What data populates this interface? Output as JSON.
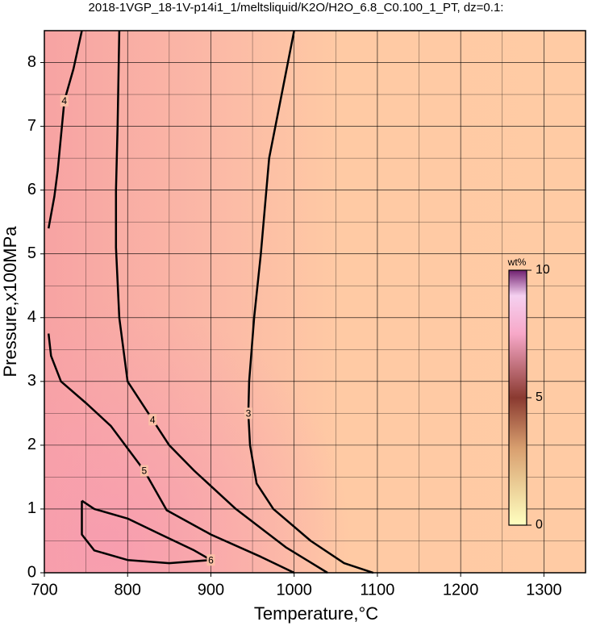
{
  "chart_data": {
    "type": "contour",
    "title": "2018-1VGP_18-1V-p14i1_1/meltsliquid/K2O/H2O_6.8_C0.100_1_PT, dz=0.1:",
    "x_label": "Temperature,°C",
    "y_label": "Pressure,x100MPa",
    "xlim": [
      700,
      1350
    ],
    "ylim": [
      0,
      8.5
    ],
    "xticks": [
      700,
      800,
      900,
      1000,
      1100,
      1200,
      1300
    ],
    "yticks": [
      0,
      1,
      2,
      3,
      4,
      5,
      6,
      7,
      8
    ],
    "grid": true,
    "contours": [
      {
        "level": 3,
        "x": [
          1000,
          985,
          970,
          960,
          952,
          946,
          945,
          947,
          955,
          975,
          1020,
          1060,
          1095
        ],
        "y": [
          8.5,
          7.5,
          6.5,
          5.0,
          4.0,
          3.0,
          2.5,
          2.0,
          1.4,
          1.0,
          0.5,
          0.15,
          0
        ]
      },
      {
        "level": 4,
        "x": [
          790,
          788,
          786,
          786,
          790,
          800,
          830,
          850,
          880,
          930,
          990,
          1040
        ],
        "y": [
          8.5,
          7.0,
          6.0,
          5.1,
          4.0,
          3.0,
          2.4,
          2.0,
          1.6,
          1.0,
          0.4,
          0
        ]
      },
      {
        "level": 4,
        "x": [
          705,
          712,
          716,
          724,
          735,
          745
        ],
        "y": [
          5.4,
          5.9,
          6.3,
          7.4,
          7.9,
          8.5
        ]
      },
      {
        "level": 5,
        "x": [
          705,
          708,
          720,
          751,
          780,
          820,
          847,
          900,
          960,
          1000
        ],
        "y": [
          3.75,
          3.4,
          3.0,
          2.65,
          2.3,
          1.6,
          0.98,
          0.6,
          0.25,
          0
        ]
      },
      {
        "level": 6,
        "x": [
          745,
          760,
          800,
          840,
          880,
          900,
          850,
          800,
          760,
          745,
          745
        ],
        "y": [
          1.13,
          1.0,
          0.85,
          0.6,
          0.35,
          0.2,
          0.15,
          0.2,
          0.35,
          0.6,
          1.13
        ]
      }
    ],
    "colorbar": {
      "title": "wt%",
      "lim": [
        0,
        10
      ],
      "ticks": [
        0,
        5,
        10
      ]
    }
  }
}
